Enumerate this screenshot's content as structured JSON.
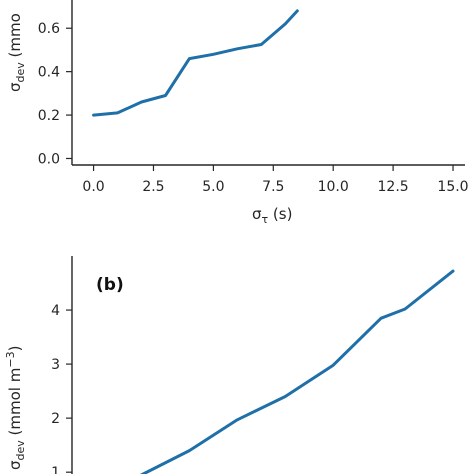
{
  "chart_data": [
    {
      "type": "line",
      "xlabel_symbol": "σ",
      "xlabel_subscript": "τ",
      "xlabel_unit": " (s)",
      "ylabel_symbol": "σ",
      "ylabel_subscript": "dev",
      "ylabel_unit": " (mmo",
      "xlim": [
        -0.9,
        15.5
      ],
      "ylim": [
        -0.03,
        0.73
      ],
      "xticks": [
        0,
        2.5,
        5,
        7.5,
        10,
        12.5,
        15
      ],
      "xtick_labels": [
        "0.0",
        "2.5",
        "5.0",
        "7.5",
        "10.0",
        "12.5",
        "15.0"
      ],
      "yticks": [
        0.0,
        0.2,
        0.4,
        0.6
      ],
      "ytick_labels": [
        "0.0",
        "0.2",
        "0.4",
        "0.6"
      ],
      "color": "#1f6fa8",
      "series": [
        {
          "x": [
            0,
            1,
            2,
            3,
            4,
            5,
            6,
            7,
            8,
            8.5
          ],
          "y": [
            0.2,
            0.21,
            0.26,
            0.29,
            0.46,
            0.48,
            0.505,
            0.525,
            0.62,
            0.68
          ]
        }
      ]
    },
    {
      "type": "line",
      "panel_label": "(b)",
      "ylabel_symbol": "σ",
      "ylabel_subscript": "dev",
      "ylabel_unit": " (mmol m",
      "ylabel_superscript": "−3",
      "ylabel_close": ")",
      "xlim": [
        -0.9,
        15.5
      ],
      "ylim": [
        0.8,
        5.0
      ],
      "yticks": [
        1,
        2,
        3,
        4
      ],
      "ytick_labels": [
        "1",
        "2",
        "3",
        "4"
      ],
      "color": "#1f6fa8",
      "series": [
        {
          "x": [
            2,
            4,
            6,
            8,
            10,
            12,
            13,
            15
          ],
          "y": [
            0.95,
            1.4,
            1.97,
            2.4,
            2.98,
            3.85,
            4.02,
            4.72
          ]
        }
      ]
    }
  ]
}
